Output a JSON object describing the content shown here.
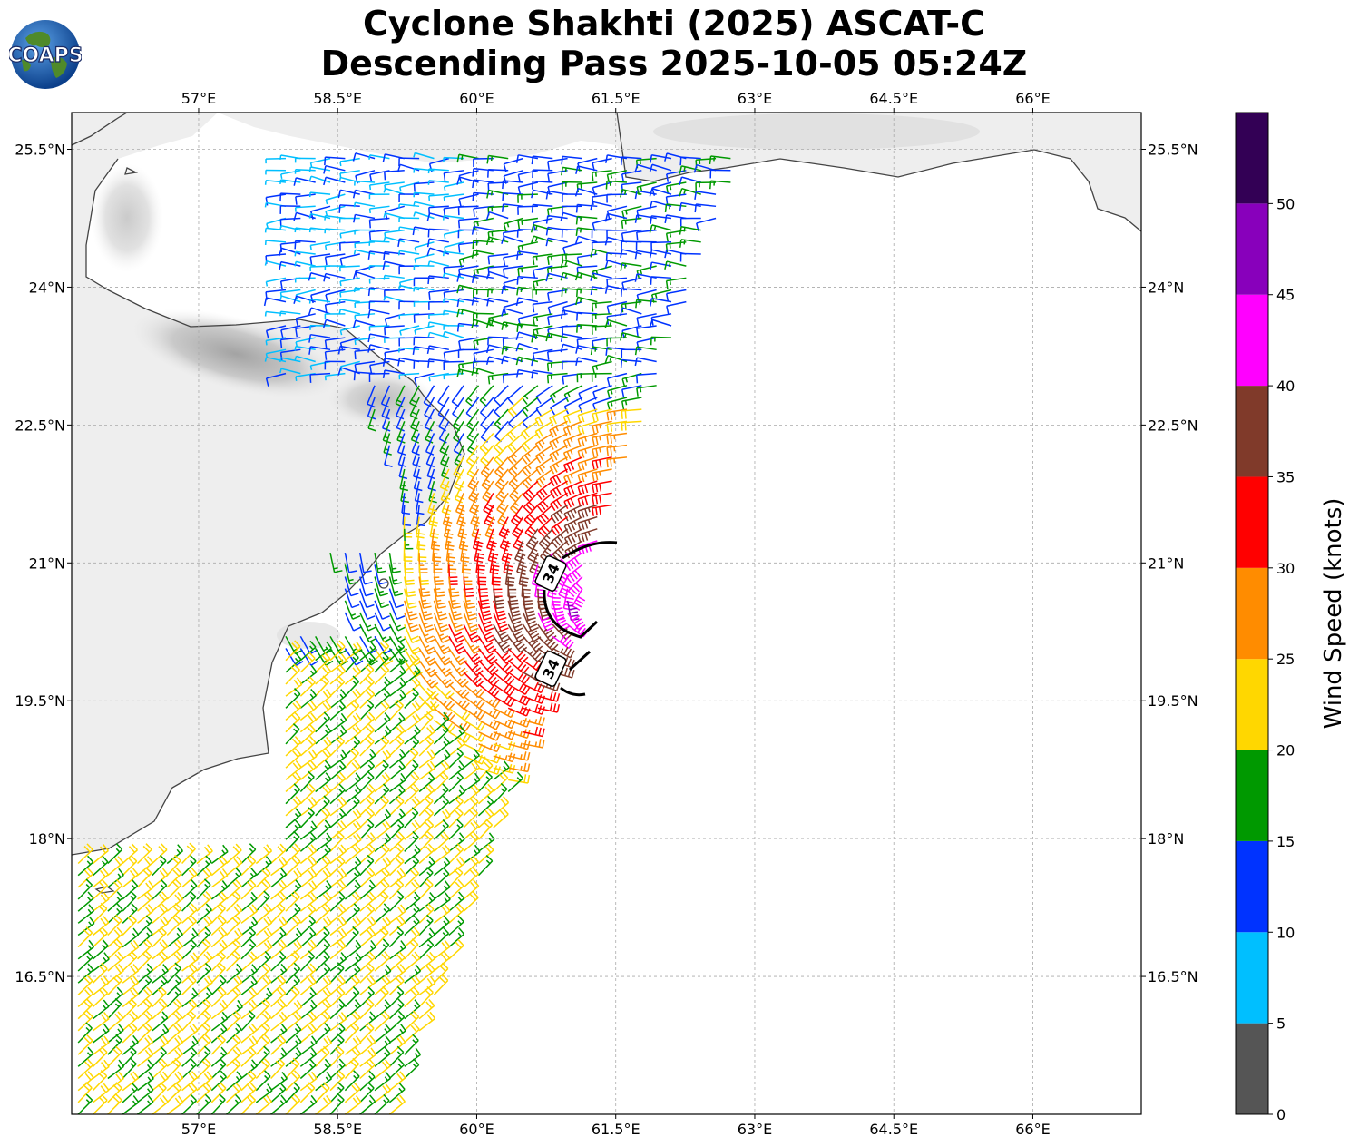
{
  "title": {
    "line1": "Cyclone Shakhti (2025) ASCAT-C",
    "line2": "Descending Pass 2025-10-05 05:24Z"
  },
  "logo": {
    "text": "COAPS",
    "icon": "globe-logo-icon"
  },
  "map": {
    "lon_range": [
      55.63,
      67.17
    ],
    "lat_range": [
      15.0,
      25.9
    ],
    "lon_ticks": [
      {
        "value": 57.0,
        "label": "57°E"
      },
      {
        "value": 58.5,
        "label": "58.5°E"
      },
      {
        "value": 60.0,
        "label": "60°E"
      },
      {
        "value": 61.5,
        "label": "61.5°E"
      },
      {
        "value": 63.0,
        "label": "63°E"
      },
      {
        "value": 64.5,
        "label": "64.5°E"
      },
      {
        "value": 66.0,
        "label": "66°E"
      }
    ],
    "lat_ticks": [
      {
        "value": 25.5,
        "label": "25.5°N"
      },
      {
        "value": 24.0,
        "label": "24°N"
      },
      {
        "value": 22.5,
        "label": "22.5°N"
      },
      {
        "value": 21.0,
        "label": "21°N"
      },
      {
        "value": 19.5,
        "label": "19.5°N"
      },
      {
        "value": 18.0,
        "label": "18°N"
      },
      {
        "value": 16.5,
        "label": "16.5°N"
      }
    ],
    "grid": true,
    "cyclone_center": {
      "lon": 61.3,
      "lat": 20.55
    },
    "radius_label": "34",
    "coastline_colors": {
      "land": "#eeeeee",
      "coast": "#444444"
    }
  },
  "colorbar": {
    "title": "Wind Speed (knots)",
    "range": [
      0,
      55
    ],
    "bins": [
      {
        "from": 0,
        "to": 5,
        "color": "#555555"
      },
      {
        "from": 5,
        "to": 10,
        "color": "#00bfff"
      },
      {
        "from": 10,
        "to": 15,
        "color": "#0033ff"
      },
      {
        "from": 15,
        "to": 20,
        "color": "#009900"
      },
      {
        "from": 20,
        "to": 25,
        "color": "#ffd700"
      },
      {
        "from": 25,
        "to": 30,
        "color": "#ff8c00"
      },
      {
        "from": 30,
        "to": 35,
        "color": "#ff0000"
      },
      {
        "from": 35,
        "to": 40,
        "color": "#803a2a"
      },
      {
        "from": 40,
        "to": 45,
        "color": "#ff00ff"
      },
      {
        "from": 45,
        "to": 50,
        "color": "#8800bb"
      },
      {
        "from": 50,
        "to": 55,
        "color": "#330055"
      }
    ],
    "tick_labels": [
      "0",
      "5",
      "10",
      "15",
      "20",
      "25",
      "30",
      "35",
      "40",
      "45",
      "50"
    ]
  }
}
